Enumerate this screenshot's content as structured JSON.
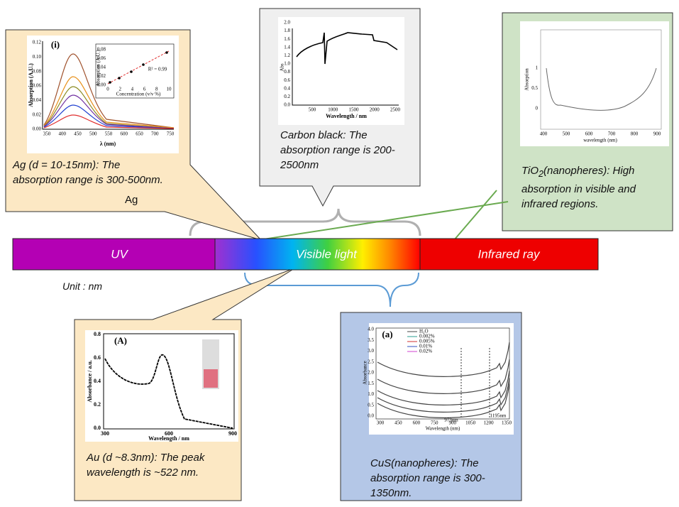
{
  "spectrum": {
    "uv": "UV",
    "visible": "Visible light",
    "infrared": "Infrared ray",
    "unit": "Unit : nm"
  },
  "ag": {
    "caption": "Ag (d = 10-15nm): The absorption range is 300-500nm.",
    "tag": "Ag",
    "chart": {
      "panel": "(i)",
      "xlabel": "λ (nm)",
      "ylabel": "Absorption (A.U.)",
      "xticks": [
        "350",
        "400",
        "450",
        "500",
        "550",
        "600",
        "650",
        "700",
        "750"
      ],
      "yticks": [
        "0.00",
        "0.02",
        "0.04",
        "0.06",
        "0.08",
        "0.10",
        "0.12"
      ],
      "inset": {
        "xlabel": "Concentration (v/v %)",
        "ylabel": "Absorption (A.U.)",
        "fit": "R² = 0.99",
        "xticks": [
          "0",
          "2",
          "4",
          "6",
          "8",
          "10"
        ],
        "yticks": [
          "0.00",
          "0.02",
          "0.04",
          "0.06",
          "0.08"
        ]
      }
    }
  },
  "carbon": {
    "caption": "Carbon black: The absorption range is 200-2500nm",
    "chart": {
      "xlabel": "Wavelength / nm",
      "ylabel": "Abs",
      "xticks": [
        "500",
        "1000",
        "1500",
        "2000",
        "2500"
      ],
      "yticks": [
        "0.0",
        "0.2",
        "0.4",
        "0.6",
        "0.8",
        "1.0",
        "1.2",
        "1.4",
        "1.6",
        "1.8",
        "2.0"
      ]
    }
  },
  "tio2": {
    "caption_prefix": "TiO",
    "caption_sub": "2",
    "caption": "(nanopheres): High absorption in visible and infrared regions.",
    "chart": {
      "xlabel": "wavelength (nm)",
      "ylabel": "Absorption",
      "xticks": [
        "400",
        "500",
        "600",
        "700",
        "800",
        "900"
      ],
      "yticks": [
        "0",
        "0.5",
        "1"
      ]
    }
  },
  "au": {
    "caption": "Au (d ~8.3nm): The peak wavelength is ~522 nm.",
    "chart": {
      "panel": "(A)",
      "xlabel": "Wavelength / nm",
      "ylabel": "Absorbance / a.u.",
      "xticks": [
        "300",
        "600",
        "900"
      ],
      "yticks": [
        "0.0",
        "0.2",
        "0.4",
        "0.6",
        "0.8"
      ]
    }
  },
  "cus": {
    "caption": "CuS(nanopheres): The absorption range is 300-1350nm.",
    "chart": {
      "panel": "(a)",
      "xlabel": "Wavelength (nm)",
      "ylabel": "Absorbance",
      "xticks": [
        "300",
        "450",
        "600",
        "750",
        "900",
        "1050",
        "1200",
        "1350"
      ],
      "yticks": [
        "0.0",
        "0.5",
        "1.0",
        "1.5",
        "2.0",
        "2.5",
        "3.0",
        "3.5",
        "4.0"
      ],
      "legend": [
        "H₂O",
        "0.002%",
        "0.005%",
        "0.01%",
        "0.02%"
      ],
      "annotations": [
        "973nm",
        "1195nm"
      ]
    }
  }
}
